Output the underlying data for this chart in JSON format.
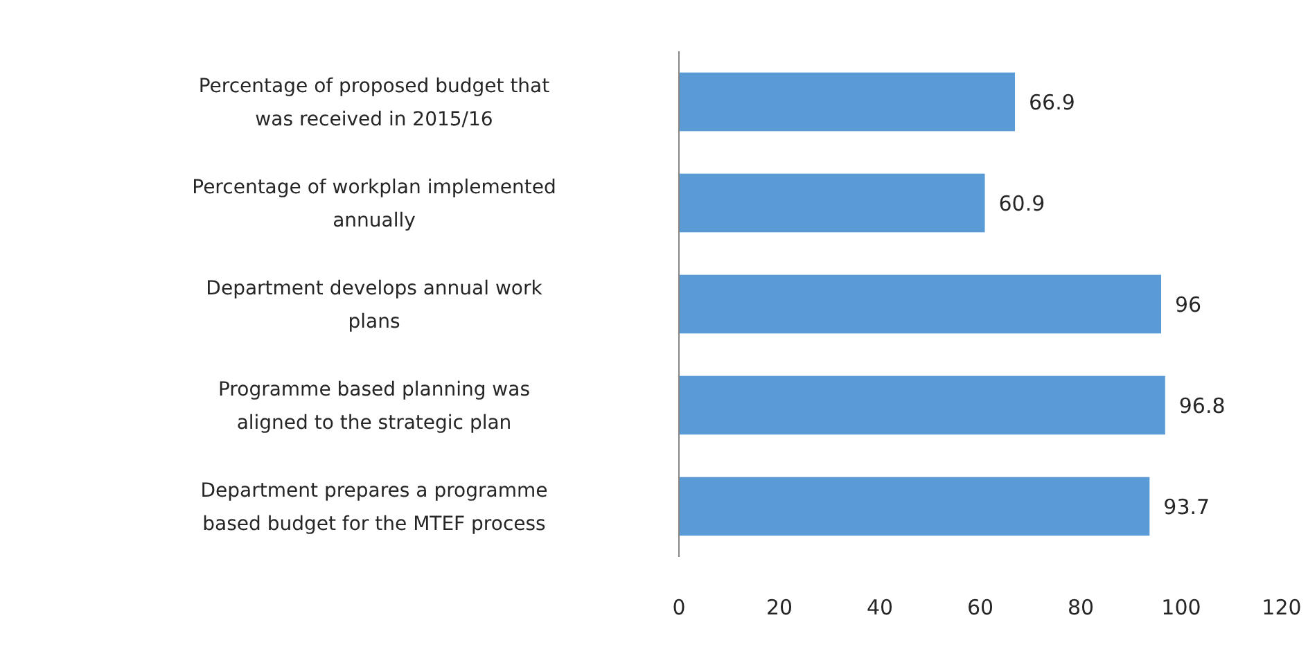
{
  "chart_data": {
    "type": "bar",
    "orientation": "horizontal",
    "categories": [
      "Percentage of proposed budget that was received in 2015/16",
      "Percentage of workplan implemented annually",
      "Department develops annual work plans",
      "Programme based planning was aligned to the strategic plan",
      "Department prepares a programme based budget for the MTEF process"
    ],
    "values": [
      66.9,
      60.9,
      96,
      96.8,
      93.7
    ],
    "color": "#5b9bd5",
    "data_labels": true,
    "xlim": [
      0,
      120
    ],
    "xticks": [
      0,
      20,
      40,
      60,
      80,
      100,
      120
    ],
    "grid": false
  }
}
